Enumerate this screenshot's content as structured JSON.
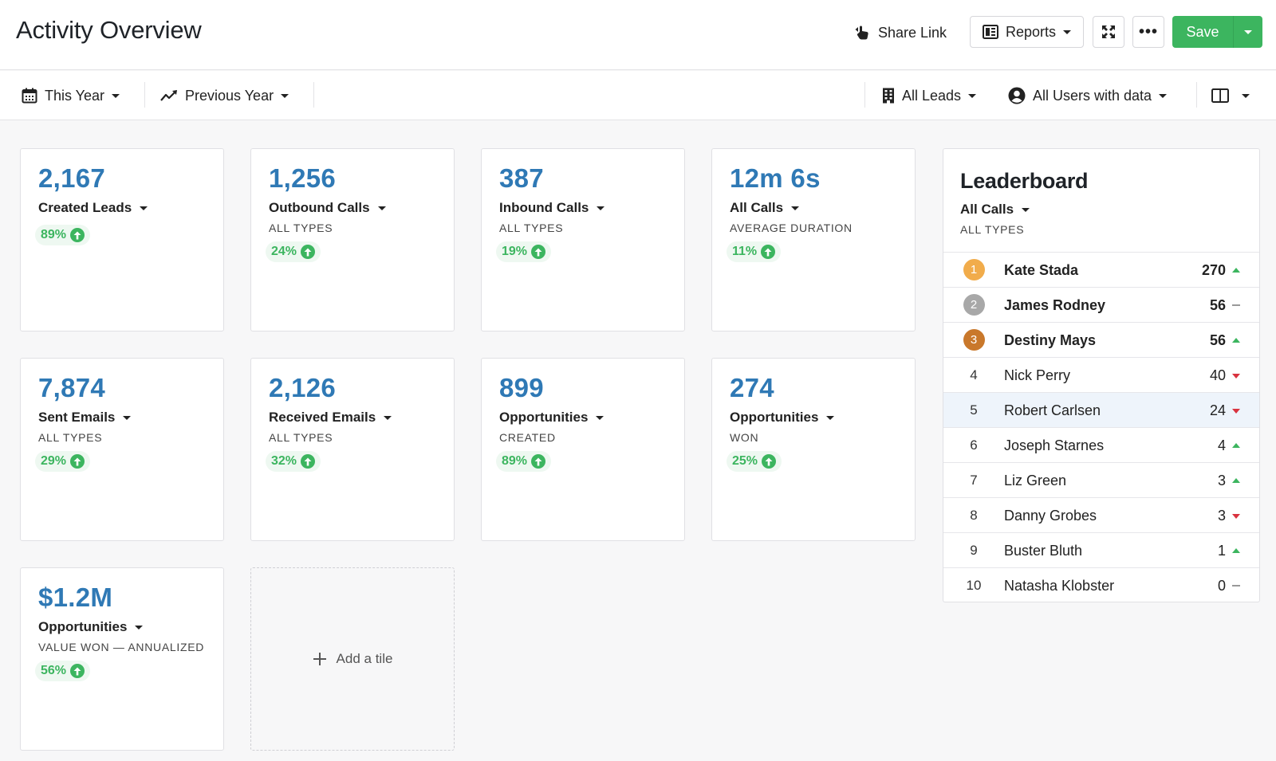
{
  "header": {
    "title": "Activity Overview",
    "share_label": "Share Link",
    "reports_label": "Reports",
    "more_label": "•••",
    "save_label": "Save"
  },
  "filters": {
    "period": "This Year",
    "compare": "Previous Year",
    "leads": "All Leads",
    "users": "All Users with data"
  },
  "tiles": [
    {
      "value": "2,167",
      "label": "Created Leads",
      "sub": "",
      "change": "89%"
    },
    {
      "value": "1,256",
      "label": "Outbound Calls",
      "sub": "ALL TYPES",
      "change": "24%"
    },
    {
      "value": "387",
      "label": "Inbound Calls",
      "sub": "ALL TYPES",
      "change": "19%"
    },
    {
      "value": "12m 6s",
      "label": "All Calls",
      "sub": "AVERAGE DURATION",
      "change": "11%"
    },
    {
      "value": "7,874",
      "label": "Sent Emails",
      "sub": "ALL TYPES",
      "change": "29%"
    },
    {
      "value": "2,126",
      "label": "Received Emails",
      "sub": "ALL TYPES",
      "change": "32%"
    },
    {
      "value": "899",
      "label": "Opportunities",
      "sub": "CREATED",
      "change": "89%"
    },
    {
      "value": "274",
      "label": "Opportunities",
      "sub": "WON",
      "change": "25%"
    },
    {
      "value": "$1.2M",
      "label": "Opportunities",
      "sub": "VALUE WON — ANNUALIZED",
      "change": "56%"
    }
  ],
  "add_tile_label": "Add a tile",
  "leaderboard": {
    "title": "Leaderboard",
    "label": "All Calls",
    "sub": "ALL TYPES",
    "rows": [
      {
        "rank": "1",
        "name": "Kate Stada",
        "score": "270",
        "trend": "up"
      },
      {
        "rank": "2",
        "name": "James Rodney",
        "score": "56",
        "trend": "flat"
      },
      {
        "rank": "3",
        "name": "Destiny Mays",
        "score": "56",
        "trend": "up"
      },
      {
        "rank": "4",
        "name": "Nick Perry",
        "score": "40",
        "trend": "down"
      },
      {
        "rank": "5",
        "name": "Robert Carlsen",
        "score": "24",
        "trend": "down"
      },
      {
        "rank": "6",
        "name": "Joseph Starnes",
        "score": "4",
        "trend": "up"
      },
      {
        "rank": "7",
        "name": "Liz Green",
        "score": "3",
        "trend": "up"
      },
      {
        "rank": "8",
        "name": "Danny Grobes",
        "score": "3",
        "trend": "down"
      },
      {
        "rank": "9",
        "name": "Buster Bluth",
        "score": "1",
        "trend": "up"
      },
      {
        "rank": "10",
        "name": "Natasha Klobster",
        "score": "0",
        "trend": "flat"
      }
    ]
  },
  "colors": {
    "accent_blue": "#2f79b5",
    "success_green": "#3cb55f",
    "gold": "#f1ac4b",
    "silver": "#a8a8a8",
    "bronze": "#c9782b",
    "trend_down": "#d9333f"
  }
}
